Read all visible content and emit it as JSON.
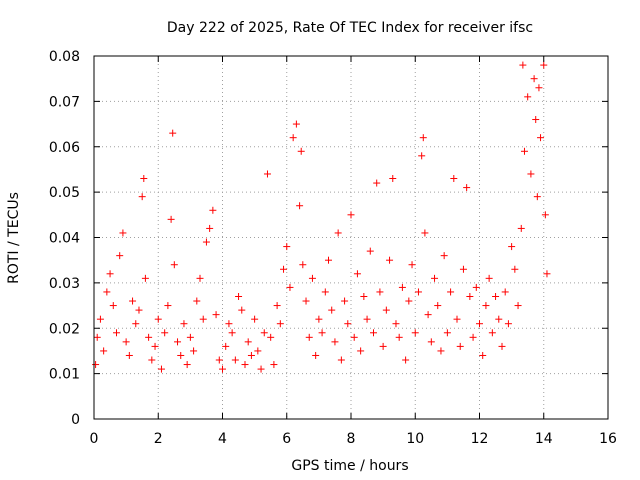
{
  "chart_data": {
    "type": "scatter",
    "title": "Day 222 of 2025, Rate Of TEC Index for receiver ifsc",
    "xlabel": "GPS time / hours",
    "ylabel": "ROTI / TECUs",
    "xlim": [
      0,
      16
    ],
    "ylim": [
      0,
      0.08
    ],
    "x_ticks": [
      "0",
      "2",
      "4",
      "6",
      "8",
      "10",
      "12",
      "14",
      "16"
    ],
    "y_ticks": [
      "0",
      "0.01",
      "0.02",
      "0.03",
      "0.04",
      "0.05",
      "0.06",
      "0.07",
      "0.08"
    ],
    "x_tick_values": [
      0,
      2,
      4,
      6,
      8,
      10,
      12,
      14,
      16
    ],
    "y_tick_values": [
      0,
      0.01,
      0.02,
      0.03,
      0.04,
      0.05,
      0.06,
      0.07,
      0.08
    ],
    "grid": true,
    "marker": "plus",
    "color": "#ff0000",
    "series": [
      {
        "x": [
          0.05,
          0.1,
          0.2,
          0.3,
          0.4,
          0.5,
          0.6,
          0.7,
          0.8,
          0.9,
          1.0,
          1.1,
          1.2,
          1.3,
          1.4,
          1.5,
          1.55,
          1.6,
          1.7,
          1.8,
          1.9,
          2.0,
          2.1,
          2.2,
          2.3,
          2.4,
          2.45,
          2.5,
          2.6,
          2.7,
          2.8,
          2.9,
          3.0,
          3.1,
          3.2,
          3.3,
          3.4,
          3.5,
          3.6,
          3.7,
          3.8,
          3.9,
          4.0,
          4.1,
          4.2,
          4.3,
          4.4,
          4.5,
          4.6,
          4.7,
          4.8,
          4.9,
          5.0,
          5.1,
          5.2,
          5.3,
          5.4,
          5.5,
          5.6,
          5.7,
          5.8,
          5.9,
          6.0,
          6.1,
          6.2,
          6.3,
          6.4,
          6.45,
          6.5,
          6.6,
          6.7,
          6.8,
          6.9,
          7.0,
          7.1,
          7.2,
          7.3,
          7.4,
          7.5,
          7.6,
          7.7,
          7.8,
          7.9,
          8.0,
          8.1,
          8.2,
          8.3,
          8.4,
          8.5,
          8.6,
          8.7,
          8.8,
          8.9,
          9.0,
          9.1,
          9.2,
          9.3,
          9.4,
          9.5,
          9.6,
          9.7,
          9.8,
          9.9,
          10.0,
          10.1,
          10.2,
          10.25,
          10.3,
          10.4,
          10.5,
          10.6,
          10.7,
          10.8,
          10.9,
          11.0,
          11.1,
          11.2,
          11.3,
          11.4,
          11.5,
          11.6,
          11.7,
          11.8,
          11.9,
          12.0,
          12.1,
          12.2,
          12.3,
          12.4,
          12.5,
          12.6,
          12.7,
          12.8,
          12.9,
          13.0,
          13.1,
          13.2,
          13.3,
          13.35,
          13.4,
          13.5,
          13.6,
          13.7,
          13.75,
          13.8,
          13.85,
          13.9,
          14.0,
          14.05,
          14.1
        ],
        "y": [
          0.012,
          0.018,
          0.022,
          0.015,
          0.028,
          0.032,
          0.025,
          0.019,
          0.036,
          0.041,
          0.017,
          0.014,
          0.026,
          0.021,
          0.024,
          0.049,
          0.053,
          0.031,
          0.018,
          0.013,
          0.016,
          0.022,
          0.011,
          0.019,
          0.025,
          0.044,
          0.063,
          0.034,
          0.017,
          0.014,
          0.021,
          0.012,
          0.018,
          0.015,
          0.026,
          0.031,
          0.022,
          0.039,
          0.042,
          0.046,
          0.023,
          0.013,
          0.011,
          0.016,
          0.021,
          0.019,
          0.013,
          0.027,
          0.024,
          0.012,
          0.017,
          0.014,
          0.022,
          0.015,
          0.011,
          0.019,
          0.054,
          0.018,
          0.012,
          0.025,
          0.021,
          0.033,
          0.038,
          0.029,
          0.062,
          0.065,
          0.047,
          0.059,
          0.034,
          0.026,
          0.018,
          0.031,
          0.014,
          0.022,
          0.019,
          0.028,
          0.035,
          0.024,
          0.017,
          0.041,
          0.013,
          0.026,
          0.021,
          0.045,
          0.018,
          0.032,
          0.015,
          0.027,
          0.022,
          0.037,
          0.019,
          0.052,
          0.028,
          0.016,
          0.024,
          0.035,
          0.053,
          0.021,
          0.018,
          0.029,
          0.013,
          0.026,
          0.034,
          0.019,
          0.028,
          0.058,
          0.062,
          0.041,
          0.023,
          0.017,
          0.031,
          0.025,
          0.015,
          0.036,
          0.019,
          0.028,
          0.053,
          0.022,
          0.016,
          0.033,
          0.051,
          0.027,
          0.018,
          0.029,
          0.021,
          0.014,
          0.025,
          0.031,
          0.019,
          0.027,
          0.022,
          0.016,
          0.028,
          0.021,
          0.038,
          0.033,
          0.025,
          0.042,
          0.078,
          0.059,
          0.071,
          0.054,
          0.075,
          0.066,
          0.049,
          0.073,
          0.062,
          0.078,
          0.045,
          0.032
        ]
      }
    ]
  }
}
